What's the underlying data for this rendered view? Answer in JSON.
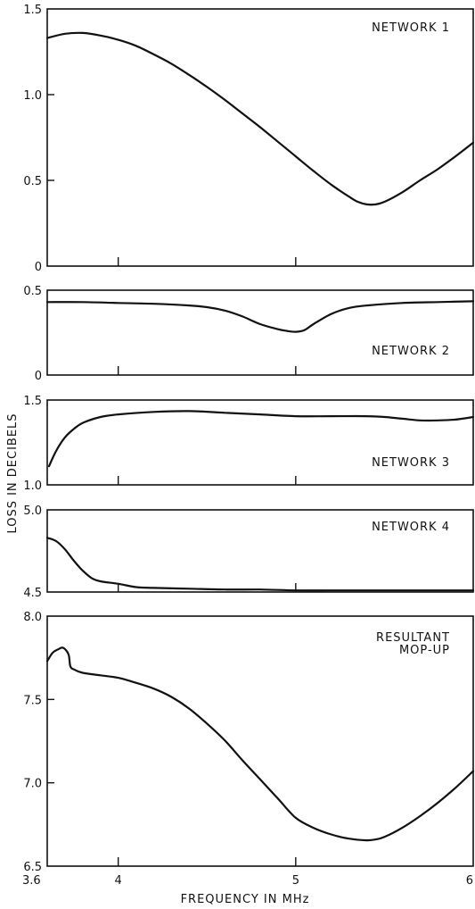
{
  "chart_data": [
    {
      "type": "line",
      "panel_label": [
        "NETWORK 1"
      ],
      "ylim": [
        0,
        1.5
      ],
      "xlim": [
        3.6,
        6
      ],
      "y_ticks": [
        0,
        0.5,
        1.0,
        1.5
      ],
      "y_tick_labels": [
        "0",
        "0.5",
        "1.0",
        "1.5"
      ],
      "x": [
        3.6,
        3.7,
        3.8,
        3.9,
        4.0,
        4.1,
        4.2,
        4.3,
        4.4,
        4.5,
        4.6,
        4.7,
        4.8,
        4.9,
        5.0,
        5.1,
        5.2,
        5.3,
        5.35,
        5.4,
        5.45,
        5.5,
        5.6,
        5.7,
        5.8,
        5.9,
        6.0
      ],
      "values": [
        1.33,
        1.355,
        1.36,
        1.345,
        1.32,
        1.285,
        1.235,
        1.18,
        1.115,
        1.045,
        0.97,
        0.89,
        0.81,
        0.725,
        0.64,
        0.555,
        0.475,
        0.405,
        0.375,
        0.36,
        0.36,
        0.375,
        0.43,
        0.5,
        0.565,
        0.64,
        0.72
      ]
    },
    {
      "type": "line",
      "panel_label": [
        "NETWORK 2"
      ],
      "ylim": [
        0,
        0.5
      ],
      "xlim": [
        3.6,
        6
      ],
      "y_ticks": [
        0,
        0.5
      ],
      "y_tick_labels": [
        "0",
        "0.5"
      ],
      "x": [
        3.6,
        3.8,
        4.0,
        4.2,
        4.4,
        4.5,
        4.6,
        4.7,
        4.8,
        4.9,
        4.95,
        5.0,
        5.05,
        5.1,
        5.2,
        5.3,
        5.4,
        5.6,
        5.8,
        6.0
      ],
      "values": [
        0.43,
        0.43,
        0.425,
        0.42,
        0.41,
        0.4,
        0.38,
        0.345,
        0.3,
        0.27,
        0.26,
        0.255,
        0.265,
        0.3,
        0.36,
        0.395,
        0.41,
        0.425,
        0.43,
        0.435
      ]
    },
    {
      "type": "line",
      "panel_label": [
        "NETWORK 3"
      ],
      "ylim": [
        1.0,
        1.5
      ],
      "xlim": [
        3.6,
        6
      ],
      "y_ticks": [
        1.0,
        1.5
      ],
      "y_tick_labels": [
        "1.0",
        "1.5"
      ],
      "x": [
        3.61,
        3.65,
        3.7,
        3.75,
        3.8,
        3.9,
        4.0,
        4.2,
        4.4,
        4.6,
        4.8,
        5.0,
        5.2,
        5.4,
        5.5,
        5.6,
        5.7,
        5.8,
        5.9,
        6.0
      ],
      "values": [
        1.11,
        1.2,
        1.28,
        1.33,
        1.365,
        1.4,
        1.415,
        1.43,
        1.435,
        1.425,
        1.415,
        1.405,
        1.405,
        1.405,
        1.4,
        1.39,
        1.38,
        1.38,
        1.385,
        1.4
      ]
    },
    {
      "type": "line",
      "panel_label": [
        "NETWORK 4"
      ],
      "ylim": [
        4.5,
        5.0
      ],
      "xlim": [
        3.6,
        6
      ],
      "y_ticks": [
        4.5,
        5.0
      ],
      "y_tick_labels": [
        "4.5",
        "5.0"
      ],
      "x": [
        3.6,
        3.65,
        3.7,
        3.75,
        3.8,
        3.85,
        3.9,
        4.0,
        4.1,
        4.2,
        4.4,
        4.6,
        4.8,
        5.0,
        5.2,
        5.4,
        5.6,
        5.8,
        6.0
      ],
      "values": [
        4.83,
        4.81,
        4.76,
        4.69,
        4.63,
        4.585,
        4.565,
        4.55,
        4.53,
        4.525,
        4.52,
        4.515,
        4.515,
        4.51,
        4.51,
        4.51,
        4.51,
        4.51,
        4.51
      ]
    },
    {
      "type": "line",
      "panel_label": [
        "RESULTANT",
        "MOP-UP"
      ],
      "ylim": [
        6.5,
        8.0
      ],
      "xlim": [
        3.6,
        6
      ],
      "y_ticks": [
        6.5,
        7.0,
        7.5,
        8.0
      ],
      "y_tick_labels": [
        "6.5",
        "7.0",
        "7.5",
        "8.0"
      ],
      "x": [
        3.6,
        3.63,
        3.66,
        3.69,
        3.72,
        3.73,
        3.75,
        3.8,
        3.9,
        4.0,
        4.1,
        4.2,
        4.3,
        4.4,
        4.5,
        4.6,
        4.7,
        4.8,
        4.9,
        5.0,
        5.1,
        5.2,
        5.3,
        5.4,
        5.45,
        5.5,
        5.6,
        5.7,
        5.8,
        5.9,
        6.0
      ],
      "values": [
        7.73,
        7.78,
        7.8,
        7.81,
        7.77,
        7.7,
        7.68,
        7.66,
        7.645,
        7.63,
        7.6,
        7.565,
        7.515,
        7.445,
        7.355,
        7.255,
        7.135,
        7.02,
        6.905,
        6.79,
        6.73,
        6.69,
        6.665,
        6.655,
        6.66,
        6.675,
        6.73,
        6.8,
        6.88,
        6.97,
        7.07
      ]
    }
  ],
  "x_tick_labels": [
    "3.6",
    "4",
    "5",
    "6"
  ],
  "x_ticks": [
    3.6,
    4,
    5,
    6
  ],
  "xlabel": "FREQUENCY IN MHz",
  "ylabel": "LOSS IN DECIBELS"
}
